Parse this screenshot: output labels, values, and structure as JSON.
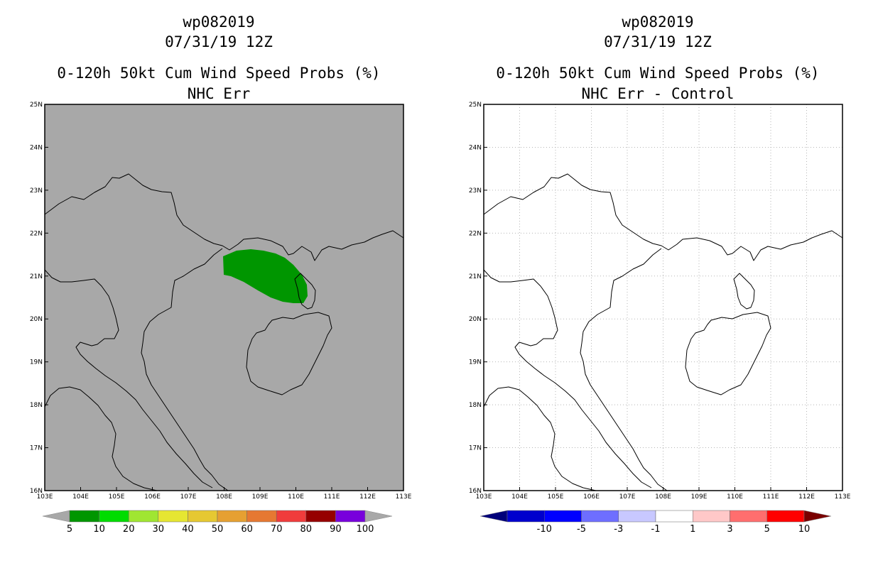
{
  "colors": {
    "land_bg_left": "#a8a8a8",
    "prob_area": "#009600"
  },
  "panels": [
    {
      "id": "left",
      "title_line1": "wp082019",
      "title_line2": "07/31/19 12Z",
      "title_line3": "0-120h 50kt Cum Wind Speed Probs (%)",
      "title_line4": "NHC Err",
      "background": "#a8a8a8",
      "show_grid": false,
      "colorbar": {
        "low_arrow": "#a8a8a8",
        "high_arrow": "#a8a8a8",
        "colors": [
          "#009600",
          "#00dc00",
          "#a0e632",
          "#e6e632",
          "#e6c832",
          "#e6a032",
          "#e67832",
          "#f03c3c",
          "#960000",
          "#7800dc"
        ],
        "labels": [
          "5",
          "10",
          "20",
          "30",
          "40",
          "50",
          "60",
          "70",
          "80",
          "90",
          "100"
        ]
      }
    },
    {
      "id": "right",
      "title_line1": "wp082019",
      "title_line2": "07/31/19 12Z",
      "title_line3": "0-120h 50kt Cum Wind Speed Probs (%)",
      "title_line4": "NHC Err - Control",
      "background": "#ffffff",
      "show_grid": true,
      "colorbar": {
        "low_arrow": "#00007a",
        "high_arrow": "#7a0000",
        "colors": [
          "#0000cd",
          "#0000ff",
          "#6e6eff",
          "#c8c8ff",
          "#ffffff",
          "#ffc8c8",
          "#ff6e6e",
          "#ff0000"
        ],
        "labels": [
          "-10",
          "-5",
          "-3",
          "-1",
          "1",
          "3",
          "5",
          "10"
        ]
      }
    }
  ],
  "axes": {
    "lon_ticks": [
      "103E",
      "104E",
      "105E",
      "106E",
      "107E",
      "108E",
      "109E",
      "110E",
      "111E",
      "112E",
      "113E"
    ],
    "lat_ticks": [
      "16N",
      "17N",
      "18N",
      "19N",
      "20N",
      "21N",
      "22N",
      "23N",
      "24N",
      "25N"
    ],
    "lon_range": [
      103,
      113
    ],
    "lat_range": [
      16,
      25
    ]
  }
}
